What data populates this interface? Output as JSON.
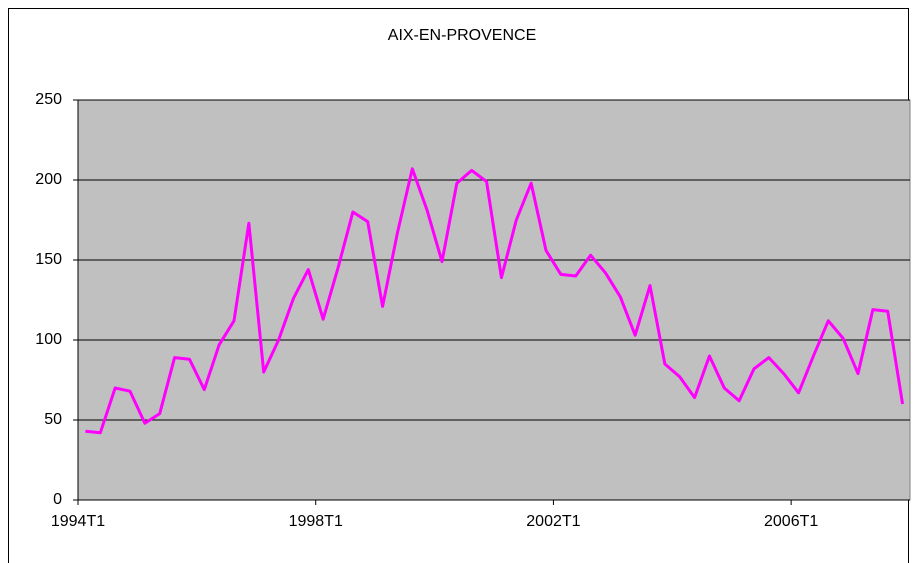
{
  "chart_data": {
    "type": "line",
    "title": "AIX-EN-PROVENCE",
    "categories": [
      "1994T1",
      null,
      null,
      null,
      null,
      null,
      null,
      null,
      null,
      null,
      null,
      null,
      null,
      null,
      null,
      null,
      "1998T1",
      null,
      null,
      null,
      null,
      null,
      null,
      null,
      null,
      null,
      null,
      null,
      null,
      null,
      null,
      null,
      "2002T1",
      null,
      null,
      null,
      null,
      null,
      null,
      null,
      null,
      null,
      null,
      null,
      null,
      null,
      null,
      null,
      "2006T1",
      null,
      null,
      null,
      null,
      null,
      null,
      null
    ],
    "series": [
      {
        "color": "#ff00ff",
        "values": [
          43,
          42,
          70,
          68,
          48,
          54,
          89,
          88,
          69,
          97,
          112,
          173,
          80,
          100,
          126,
          144,
          113,
          145,
          180,
          174,
          121,
          167,
          207,
          181,
          149,
          198,
          206,
          199,
          139,
          175,
          198,
          156,
          141,
          140,
          153,
          142,
          127,
          103,
          134,
          85,
          77,
          64,
          90,
          70,
          62,
          82,
          89,
          79,
          67,
          90,
          112,
          101,
          79,
          119,
          118,
          60
        ]
      }
    ],
    "ylim": [
      0,
      250
    ],
    "yticks": [
      0,
      50,
      100,
      150,
      200,
      250
    ],
    "grid": true,
    "plot_background": "#c0c0c0"
  }
}
